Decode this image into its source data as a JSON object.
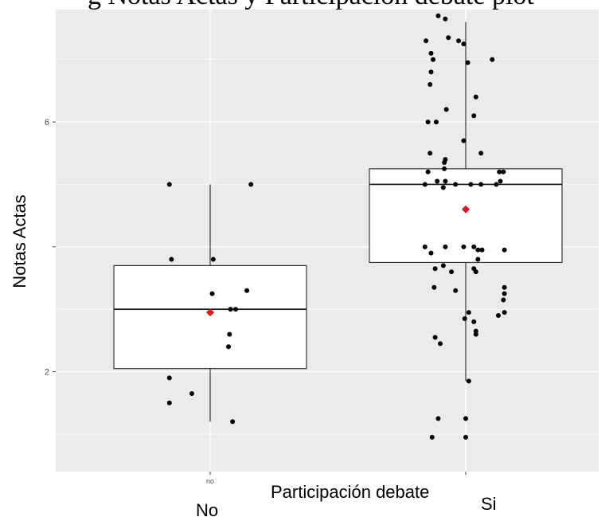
{
  "caption": {
    "partial_title": "g Notas Actas y Participación debate plot"
  },
  "annotations": {
    "no": "No",
    "si": "Si"
  },
  "chart_data": {
    "type": "box",
    "title": "",
    "xlabel": "Participación debate",
    "ylabel": "Notas Actas",
    "categories": [
      "no",
      "si"
    ],
    "category_tick_labels": [
      "no",
      ""
    ],
    "ylim": [
      0.4,
      7.8
    ],
    "yticks": [
      2,
      4,
      6
    ],
    "ytick_labels": [
      "2",
      "",
      "6"
    ],
    "grid": true,
    "background": "#EBEBEB",
    "grid_color": "#FFFFFF",
    "point_color": "#000000",
    "mean_color": "#E8141B",
    "boxes": [
      {
        "category": "no",
        "whisker_low": 1.2,
        "q1": 2.05,
        "median": 3.0,
        "q3": 3.7,
        "whisker_high": 5.0,
        "mean": 2.95
      },
      {
        "category": "si",
        "whisker_low": 1.85,
        "q1": 3.75,
        "median": 5.0,
        "q3": 5.25,
        "whisker_high": 7.6,
        "mean": 4.6
      }
    ],
    "points": {
      "no": [
        {
          "x": -0.4,
          "y": 1.5
        },
        {
          "x": -0.38,
          "y": 3.8
        },
        {
          "x": -0.4,
          "y": 5.0
        },
        {
          "x": -0.4,
          "y": 1.9
        },
        {
          "x": -0.18,
          "y": 1.65
        },
        {
          "x": 0.03,
          "y": 3.8
        },
        {
          "x": 0.02,
          "y": 3.25
        },
        {
          "x": 0.2,
          "y": 3.0
        },
        {
          "x": 0.25,
          "y": 3.0
        },
        {
          "x": 0.19,
          "y": 2.6
        },
        {
          "x": 0.18,
          "y": 2.4
        },
        {
          "x": 0.36,
          "y": 3.3
        },
        {
          "x": 0.4,
          "y": 5.0
        },
        {
          "x": 0.22,
          "y": 1.2
        }
      ],
      "si": [
        {
          "x": -0.39,
          "y": 7.3
        },
        {
          "x": -0.34,
          "y": 7.1
        },
        {
          "x": -0.34,
          "y": 6.8
        },
        {
          "x": -0.32,
          "y": 7.0
        },
        {
          "x": -0.27,
          "y": 7.7
        },
        {
          "x": -0.2,
          "y": 7.65
        },
        {
          "x": -0.17,
          "y": 7.35
        },
        {
          "x": -0.07,
          "y": 7.3
        },
        {
          "x": -0.02,
          "y": 7.25
        },
        {
          "x": 0.02,
          "y": 6.95
        },
        {
          "x": 0.26,
          "y": 7.0
        },
        {
          "x": -0.19,
          "y": 6.2
        },
        {
          "x": 0.08,
          "y": 6.1
        },
        {
          "x": 0.1,
          "y": 6.4
        },
        {
          "x": -0.35,
          "y": 6.6
        },
        {
          "x": -0.37,
          "y": 6.0
        },
        {
          "x": -0.29,
          "y": 6.0
        },
        {
          "x": -0.35,
          "y": 5.5
        },
        {
          "x": -0.02,
          "y": 5.7
        },
        {
          "x": -0.2,
          "y": 5.4
        },
        {
          "x": -0.21,
          "y": 5.35
        },
        {
          "x": 0.15,
          "y": 5.5
        },
        {
          "x": -0.21,
          "y": 5.25
        },
        {
          "x": -0.37,
          "y": 5.2
        },
        {
          "x": -0.4,
          "y": 5.0
        },
        {
          "x": -0.28,
          "y": 5.05
        },
        {
          "x": -0.2,
          "y": 5.05
        },
        {
          "x": -0.1,
          "y": 5.0
        },
        {
          "x": 0.05,
          "y": 5.0
        },
        {
          "x": 0.15,
          "y": 5.0
        },
        {
          "x": -0.22,
          "y": 4.95
        },
        {
          "x": 0.3,
          "y": 5.0
        },
        {
          "x": 0.34,
          "y": 5.05
        },
        {
          "x": 0.33,
          "y": 5.2
        },
        {
          "x": 0.37,
          "y": 5.2
        },
        {
          "x": -0.4,
          "y": 4.0
        },
        {
          "x": -0.34,
          "y": 3.9
        },
        {
          "x": -0.2,
          "y": 4.0
        },
        {
          "x": -0.02,
          "y": 4.0
        },
        {
          "x": 0.08,
          "y": 4.0
        },
        {
          "x": 0.12,
          "y": 3.95
        },
        {
          "x": 0.16,
          "y": 3.95
        },
        {
          "x": 0.12,
          "y": 3.8
        },
        {
          "x": 0.08,
          "y": 3.65
        },
        {
          "x": 0.1,
          "y": 3.6
        },
        {
          "x": -0.3,
          "y": 3.65
        },
        {
          "x": -0.22,
          "y": 3.7
        },
        {
          "x": -0.14,
          "y": 3.6
        },
        {
          "x": -0.1,
          "y": 3.3
        },
        {
          "x": -0.31,
          "y": 3.35
        },
        {
          "x": 0.38,
          "y": 3.95
        },
        {
          "x": 0.38,
          "y": 3.35
        },
        {
          "x": 0.38,
          "y": 3.25
        },
        {
          "x": 0.37,
          "y": 3.15
        },
        {
          "x": -0.01,
          "y": 2.85
        },
        {
          "x": 0.03,
          "y": 2.95
        },
        {
          "x": 0.08,
          "y": 2.8
        },
        {
          "x": 0.1,
          "y": 2.65
        },
        {
          "x": 0.1,
          "y": 2.6
        },
        {
          "x": 0.32,
          "y": 2.9
        },
        {
          "x": 0.38,
          "y": 2.95
        },
        {
          "x": -0.3,
          "y": 2.55
        },
        {
          "x": -0.25,
          "y": 2.45
        },
        {
          "x": 0.03,
          "y": 1.85
        },
        {
          "x": -0.27,
          "y": 1.25
        },
        {
          "x": -0.33,
          "y": 0.95
        },
        {
          "x": 0.0,
          "y": 1.25
        },
        {
          "x": 0.0,
          "y": 0.95
        }
      ]
    }
  }
}
